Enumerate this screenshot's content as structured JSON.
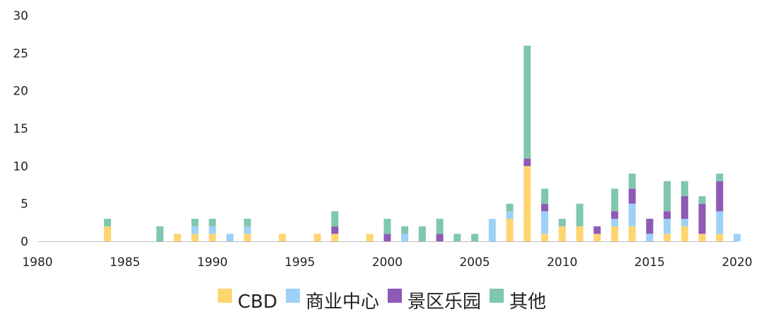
{
  "chart_data": {
    "type": "bar",
    "stacked": true,
    "x": [
      1980,
      1981,
      1982,
      1983,
      1984,
      1985,
      1986,
      1987,
      1988,
      1989,
      1990,
      1991,
      1992,
      1993,
      1994,
      1995,
      1996,
      1997,
      1998,
      1999,
      2000,
      2001,
      2002,
      2003,
      2004,
      2005,
      2006,
      2007,
      2008,
      2009,
      2010,
      2011,
      2012,
      2013,
      2014,
      2015,
      2016,
      2017,
      2018,
      2019,
      2020
    ],
    "x_ticks": [
      "1980",
      "1985",
      "1990",
      "1995",
      "2000",
      "2005",
      "2010",
      "2015",
      "2020"
    ],
    "y_ticks": [
      "0",
      "5",
      "10",
      "15",
      "20",
      "25",
      "30"
    ],
    "ylim": [
      0,
      30
    ],
    "title": "",
    "xlabel": "",
    "ylabel": "",
    "grid": false,
    "legend_position": "bottom",
    "series": [
      {
        "name": "CBD",
        "color": "#FFD56F",
        "values": [
          0,
          0,
          0,
          0,
          2,
          0,
          0,
          0,
          1,
          1,
          1,
          0,
          1,
          0,
          1,
          0,
          1,
          1,
          0,
          1,
          0,
          0,
          0,
          0,
          0,
          0,
          0,
          3,
          10,
          1,
          2,
          2,
          1,
          2,
          2,
          0,
          1,
          2,
          1,
          1,
          0
        ]
      },
      {
        "name": "商业中心",
        "color": "#9DD1F6",
        "values": [
          0,
          0,
          0,
          0,
          0,
          0,
          0,
          0,
          0,
          1,
          1,
          1,
          1,
          0,
          0,
          0,
          0,
          0,
          0,
          0,
          0,
          1,
          0,
          0,
          0,
          0,
          3,
          1,
          0,
          3,
          0,
          0,
          0,
          1,
          3,
          1,
          2,
          1,
          0,
          3,
          1
        ]
      },
      {
        "name": "景区乐园",
        "color": "#8E5AB5",
        "values": [
          0,
          0,
          0,
          0,
          0,
          0,
          0,
          0,
          0,
          0,
          0,
          0,
          0,
          0,
          0,
          0,
          0,
          1,
          0,
          0,
          1,
          0,
          0,
          1,
          0,
          0,
          0,
          0,
          1,
          1,
          0,
          0,
          1,
          1,
          2,
          2,
          1,
          3,
          4,
          4,
          0
        ]
      },
      {
        "name": "其他",
        "color": "#7FC7AE",
        "values": [
          0,
          0,
          0,
          0,
          1,
          0,
          0,
          2,
          0,
          1,
          1,
          0,
          1,
          0,
          0,
          0,
          0,
          2,
          0,
          0,
          2,
          1,
          2,
          2,
          1,
          1,
          0,
          1,
          15,
          2,
          1,
          3,
          0,
          3,
          2,
          0,
          4,
          2,
          1,
          1,
          0
        ]
      }
    ]
  }
}
